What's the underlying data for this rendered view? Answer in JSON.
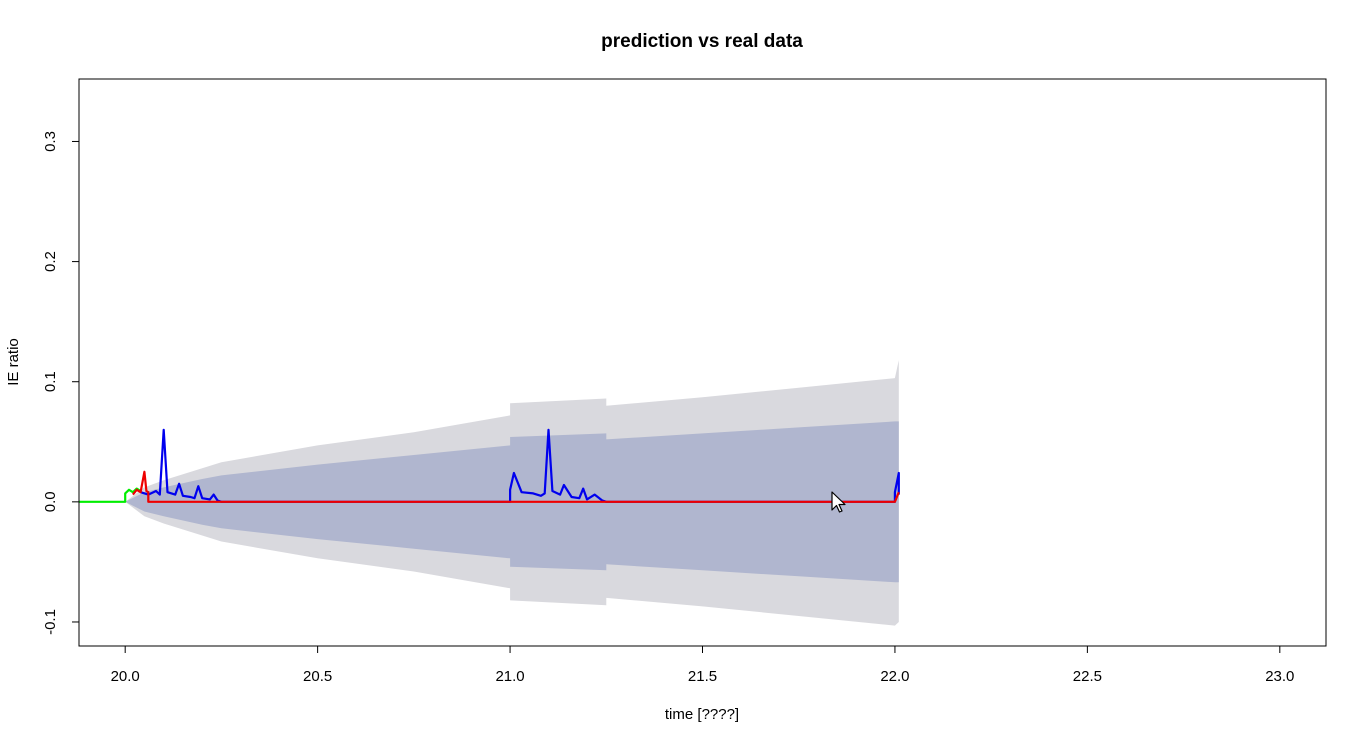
{
  "chart_data": {
    "type": "line",
    "title": "prediction vs real data",
    "xlabel": "time [????]",
    "ylabel": "IE ratio",
    "xlim": [
      19.88,
      23.12
    ],
    "ylim": [
      -0.12,
      0.352
    ],
    "x_ticks": [
      20.0,
      20.5,
      21.0,
      21.5,
      22.0,
      22.5,
      23.0
    ],
    "x_tick_labels": [
      "20.0",
      "20.5",
      "21.0",
      "21.5",
      "22.0",
      "22.5",
      "23.0"
    ],
    "y_ticks": [
      -0.1,
      0.0,
      0.1,
      0.2,
      0.3
    ],
    "y_tick_labels": [
      "-0.1",
      "0.0",
      "0.1",
      "0.2",
      "0.3"
    ],
    "grid": false,
    "legend": "none",
    "colors": {
      "outer_band": "#d9d9de",
      "inner_band": "#b0b6cf",
      "real_data_before": "#00ee00",
      "real_data": "#0000ee",
      "prediction": "#ee0000"
    },
    "series": [
      {
        "role": "outer prediction band",
        "color": "#d9d9de",
        "x": [
          20.0,
          20.05,
          20.1,
          20.2,
          20.25,
          20.5,
          20.75,
          21.0,
          21.0,
          21.25,
          21.25,
          21.5,
          21.75,
          22.0,
          22.01
        ],
        "upper": [
          0.0,
          0.012,
          0.018,
          0.028,
          0.033,
          0.047,
          0.058,
          0.072,
          0.082,
          0.086,
          0.08,
          0.087,
          0.095,
          0.103,
          0.118
        ],
        "lower": [
          0.0,
          -0.012,
          -0.018,
          -0.028,
          -0.033,
          -0.047,
          -0.058,
          -0.072,
          -0.082,
          -0.086,
          -0.08,
          -0.087,
          -0.095,
          -0.103,
          -0.1
        ]
      },
      {
        "role": "inner prediction band",
        "color": "#b0b6cf",
        "x": [
          20.0,
          20.05,
          20.1,
          20.2,
          20.25,
          20.5,
          20.75,
          21.0,
          21.0,
          21.25,
          21.25,
          21.5,
          21.75,
          22.0,
          22.01
        ],
        "upper": [
          0.0,
          0.008,
          0.012,
          0.019,
          0.022,
          0.031,
          0.039,
          0.047,
          0.054,
          0.057,
          0.052,
          0.057,
          0.062,
          0.067,
          0.067
        ],
        "lower": [
          0.0,
          -0.008,
          -0.012,
          -0.019,
          -0.022,
          -0.031,
          -0.039,
          -0.047,
          -0.054,
          -0.057,
          -0.052,
          -0.057,
          -0.062,
          -0.067,
          -0.067
        ]
      },
      {
        "role": "real data (before)",
        "color": "#00ee00",
        "x": [
          19.88,
          20.0,
          20.0,
          20.01,
          20.02,
          20.03,
          20.04
        ],
        "y": [
          0.0,
          0.0,
          0.007,
          0.01,
          0.008,
          0.011,
          0.009
        ]
      },
      {
        "role": "real data",
        "color": "#0000ee",
        "x": [
          20.04,
          20.06,
          20.08,
          20.09,
          20.1,
          20.11,
          20.13,
          20.14,
          20.15,
          20.17,
          20.18,
          20.19,
          20.2,
          20.22,
          20.23,
          20.24,
          20.25,
          21.0,
          21.0,
          21.01,
          21.03,
          21.06,
          21.08,
          21.09,
          21.1,
          21.11,
          21.13,
          21.14,
          21.16,
          21.18,
          21.19,
          21.2,
          21.22,
          21.24,
          21.25,
          22.0,
          22.0,
          22.01,
          22.01
        ],
        "y": [
          0.008,
          0.006,
          0.009,
          0.006,
          0.06,
          0.008,
          0.006,
          0.015,
          0.005,
          0.004,
          0.003,
          0.013,
          0.003,
          0.002,
          0.006,
          0.001,
          0.0,
          0.0,
          0.01,
          0.024,
          0.008,
          0.007,
          0.005,
          0.007,
          0.06,
          0.009,
          0.006,
          0.014,
          0.004,
          0.003,
          0.011,
          0.002,
          0.006,
          0.001,
          0.0,
          0.0,
          0.008,
          0.024,
          0.006
        ]
      },
      {
        "role": "prediction",
        "color": "#ee0000",
        "x": [
          20.02,
          20.03,
          20.04,
          20.05,
          20.055,
          20.06,
          20.06,
          21.99,
          22.0,
          22.01
        ],
        "y": [
          0.006,
          0.01,
          0.008,
          0.025,
          0.009,
          0.008,
          0.0,
          0.0,
          0.0,
          0.008
        ]
      }
    ]
  }
}
